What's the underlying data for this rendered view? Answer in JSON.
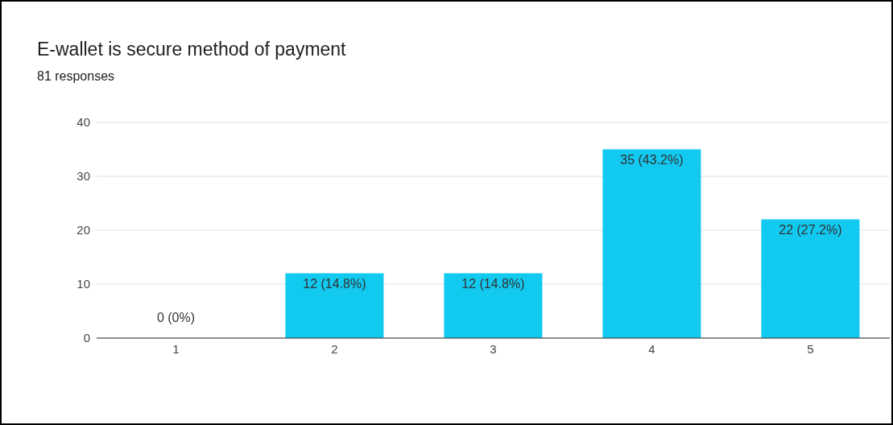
{
  "chart_data": {
    "type": "bar",
    "title": "E-wallet is secure method of payment",
    "subtitle": "81 responses",
    "categories": [
      "1",
      "2",
      "3",
      "4",
      "5"
    ],
    "values": [
      0,
      12,
      12,
      35,
      22
    ],
    "value_labels": [
      "0 (0%)",
      "12 (14.8%)",
      "12 (14.8%)",
      "35 (43.2%)",
      "22 (27.2%)"
    ],
    "color": "#12c9f0",
    "ylim": [
      0,
      40
    ],
    "yticks": [
      0,
      10,
      20,
      30,
      40
    ],
    "grid": "y"
  }
}
